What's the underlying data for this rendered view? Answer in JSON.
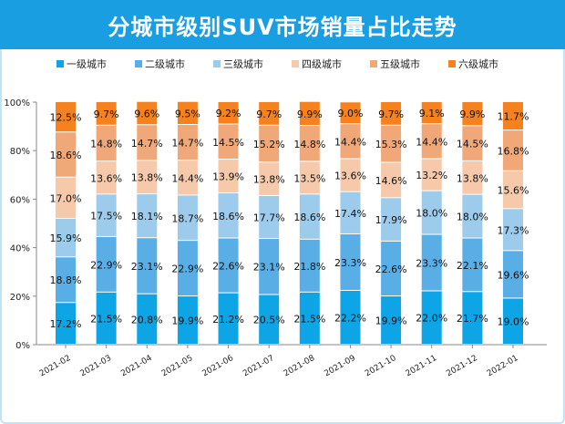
{
  "chart_data": {
    "type": "bar",
    "stacked": true,
    "title": "分城市级别SUV市场销量占比走势",
    "categories": [
      "2021-02",
      "2021-03",
      "2021-04",
      "2021-05",
      "2021-06",
      "2021-07",
      "2021-08",
      "2021-09",
      "2021-10",
      "2021-11",
      "2021-12",
      "2022-01"
    ],
    "series": [
      {
        "name": "一级城市",
        "color": "#0ea5e6",
        "values": [
          17.2,
          21.5,
          20.8,
          19.9,
          21.2,
          20.5,
          21.5,
          22.2,
          19.9,
          22.0,
          21.7,
          19.0
        ]
      },
      {
        "name": "二级城市",
        "color": "#5aaee6",
        "values": [
          18.8,
          22.9,
          23.1,
          22.9,
          22.6,
          23.1,
          21.8,
          23.3,
          22.6,
          23.3,
          22.1,
          19.6
        ]
      },
      {
        "name": "三级城市",
        "color": "#9ccbec",
        "values": [
          15.9,
          17.5,
          18.1,
          18.7,
          18.6,
          17.7,
          18.6,
          17.4,
          17.9,
          18.0,
          18.0,
          17.3
        ]
      },
      {
        "name": "四级城市",
        "color": "#f6c9aa",
        "values": [
          17.0,
          13.6,
          13.8,
          14.4,
          13.9,
          13.8,
          13.5,
          13.6,
          14.6,
          13.2,
          13.8,
          15.6
        ]
      },
      {
        "name": "五级城市",
        "color": "#f0a878",
        "values": [
          18.6,
          14.8,
          14.7,
          14.7,
          14.5,
          15.2,
          14.8,
          14.4,
          15.3,
          14.4,
          14.5,
          16.8
        ]
      },
      {
        "name": "六级城市",
        "color": "#f5821f",
        "values": [
          12.5,
          9.7,
          9.6,
          9.5,
          9.2,
          9.7,
          9.9,
          9.0,
          9.7,
          9.1,
          9.9,
          11.7
        ]
      }
    ],
    "yticks": [
      "0%",
      "20%",
      "40%",
      "60%",
      "80%",
      "100%"
    ],
    "ylim": [
      0,
      100
    ],
    "legend": "top",
    "grid": false,
    "data_labels": true
  }
}
